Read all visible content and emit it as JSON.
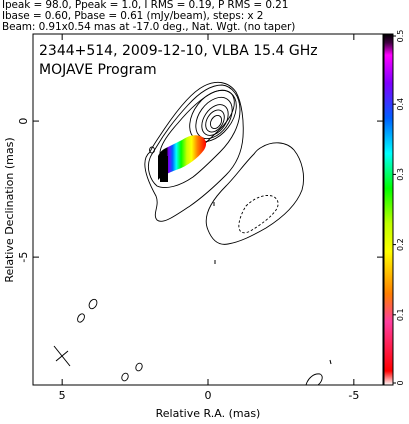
{
  "header": {
    "line1": "Ipeak = 98.0, Ppeak = 1.0, I RMS = 0.19, P RMS = 0.21",
    "line2": "Ibase = 0.60, Pbase = 0.61 (mJy/beam), steps: x 2",
    "line3": "Beam: 0.91x0.54 mas at -17.0 deg., Nat. Wgt. (no taper)"
  },
  "chart_data": {
    "type": "contour",
    "title": "2344+514, 2009-12-10, VLBA 15.4 GHz",
    "subtitle": "MOJAVE Program",
    "xlabel": "Relative R.A. (mas)",
    "ylabel": "Relative Declination (mas)",
    "xlim": [
      6,
      -6
    ],
    "ylim": [
      -9.7,
      3.2
    ],
    "x_ticks": [
      5,
      0,
      -5
    ],
    "y_ticks": [
      0,
      -5
    ],
    "colorbar": {
      "min": 0,
      "max": 0.5,
      "ticks": [
        "0",
        "0.1",
        "0.2",
        "0.3",
        "0.4",
        "0.5"
      ],
      "label_values": [
        0,
        0.1,
        0.2,
        0.3,
        0.4,
        0.5
      ]
    },
    "beam": {
      "major_mas": 0.91,
      "minor_mas": 0.54,
      "pa_deg": -17.0
    },
    "core": {
      "x": 0.0,
      "y": 0.0
    },
    "contour_base_mjy": 0.6,
    "contour_step_factor": 2
  }
}
